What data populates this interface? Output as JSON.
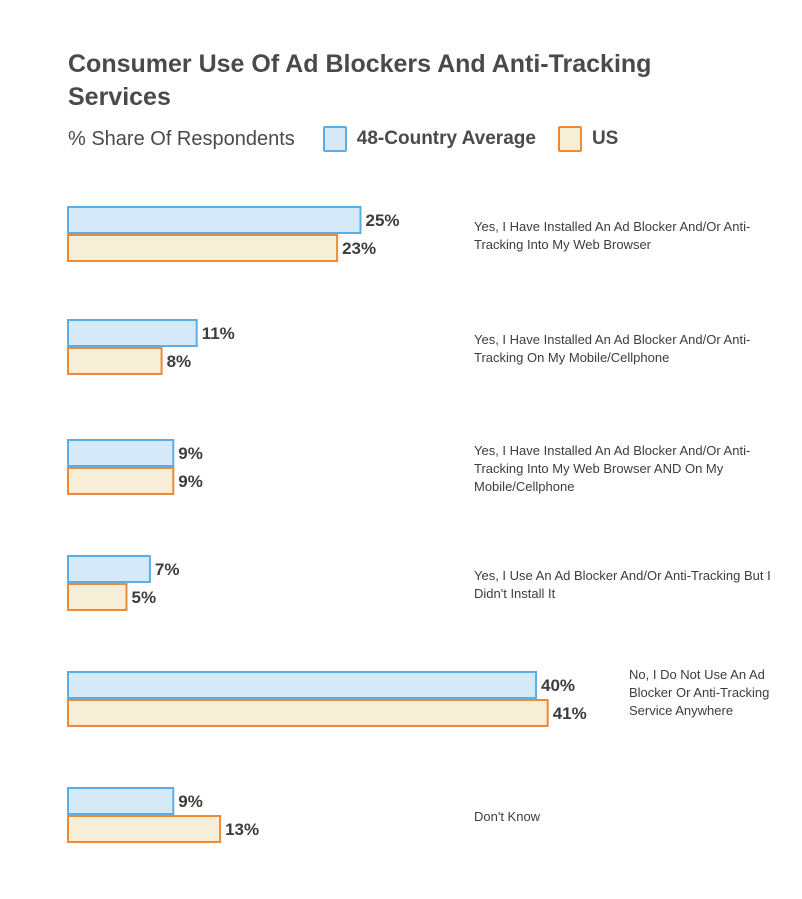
{
  "chart_data": {
    "type": "bar",
    "orientation": "horizontal",
    "title": "Consumer Use Of Ad Blockers And Anti-Tracking Services",
    "subtitle": "% Share Of Respondents",
    "unit": "%",
    "xlim": [
      0,
      100
    ],
    "grid": false,
    "legend_placement": "top",
    "categories": [
      "Yes, I Have Installed An Ad Blocker And/Or Anti-Tracking Into My Web Browser",
      "Yes, I Have Installed An Ad Blocker And/Or Anti-Tracking On My Mobile/Cellphone",
      "Yes, I Have Installed An Ad Blocker And/Or Anti-Tracking Into My Web Browser AND On My Mobile/Cellphone",
      "Yes, I Use An Ad Blocker And/Or Anti-Tracking But I Didn't Install It",
      "No, I Do Not Use An Ad Blocker Or Anti-Tracking Service Anywhere",
      "Don't Know"
    ],
    "series": [
      {
        "name": "48-Country Average",
        "fill": "#d6e9f8",
        "stroke": "#5aaee8",
        "values": [
          25,
          11,
          9,
          7,
          40,
          9
        ],
        "labels": [
          "25%",
          "11%",
          "9%",
          "7%",
          "40%",
          "9%"
        ]
      },
      {
        "name": "US",
        "fill": "#f6eed7",
        "stroke": "#ef8a34",
        "values": [
          23,
          8,
          9,
          5,
          41,
          13
        ],
        "labels": [
          "23%",
          "8%",
          "9%",
          "5%",
          "41%",
          "13%"
        ]
      }
    ]
  }
}
